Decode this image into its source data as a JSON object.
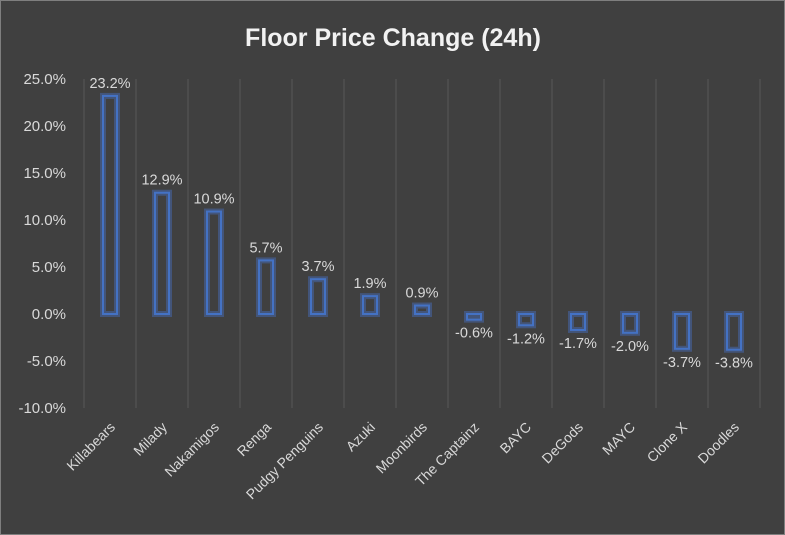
{
  "chart_data": {
    "type": "bar",
    "title": "Floor Price Change (24h)",
    "categories": [
      "Killabears",
      "Milady",
      "Nakamigos",
      "Renga",
      "Pudgy Penguins",
      "Azuki",
      "Moonbirds",
      "The Captainz",
      "BAYC",
      "DeGods",
      "MAYC",
      "Clone X",
      "Doodles"
    ],
    "values": [
      23.2,
      12.9,
      10.9,
      5.7,
      3.7,
      1.9,
      0.9,
      -0.6,
      -1.2,
      -1.7,
      -2.0,
      -3.7,
      -3.8
    ],
    "data_labels": [
      "23.2%",
      "12.9%",
      "10.9%",
      "5.7%",
      "3.7%",
      "1.9%",
      "0.9%",
      "-0.6%",
      "-1.2%",
      "-1.7%",
      "-2.0%",
      "-3.7%",
      "-3.8%"
    ],
    "yticks": [
      25,
      20,
      15,
      10,
      5,
      0,
      -5,
      -10
    ],
    "ytick_labels": [
      "25.0%",
      "20.0%",
      "15.0%",
      "10.0%",
      "5.0%",
      "0.0%",
      "-5.0%",
      "-10.0%"
    ],
    "ylim": [
      -10,
      25
    ],
    "grid": "vertical",
    "bar_color": "#4472c4",
    "background_color": "#404040"
  }
}
